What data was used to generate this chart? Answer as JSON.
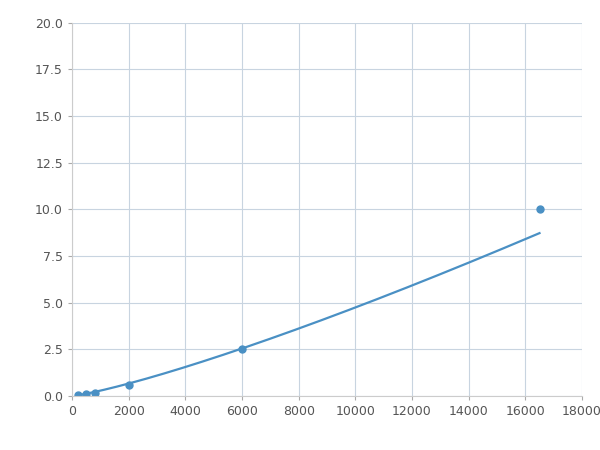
{
  "x_points": [
    200,
    500,
    800,
    2000,
    6000,
    16500
  ],
  "y_points": [
    0.05,
    0.12,
    0.18,
    0.6,
    2.5,
    10.0
  ],
  "line_color": "#4a90c4",
  "marker_color": "#4a90c4",
  "marker_style": "o",
  "marker_size": 5,
  "line_width": 1.6,
  "xlim": [
    0,
    18000
  ],
  "ylim": [
    0,
    20.0
  ],
  "xticks": [
    0,
    2000,
    4000,
    6000,
    8000,
    10000,
    12000,
    14000,
    16000,
    18000
  ],
  "yticks": [
    0.0,
    2.5,
    5.0,
    7.5,
    10.0,
    12.5,
    15.0,
    17.5,
    20.0
  ],
  "grid_color": "#c8d4e0",
  "background_color": "#ffffff",
  "figsize": [
    6.0,
    4.5
  ],
  "dpi": 100
}
